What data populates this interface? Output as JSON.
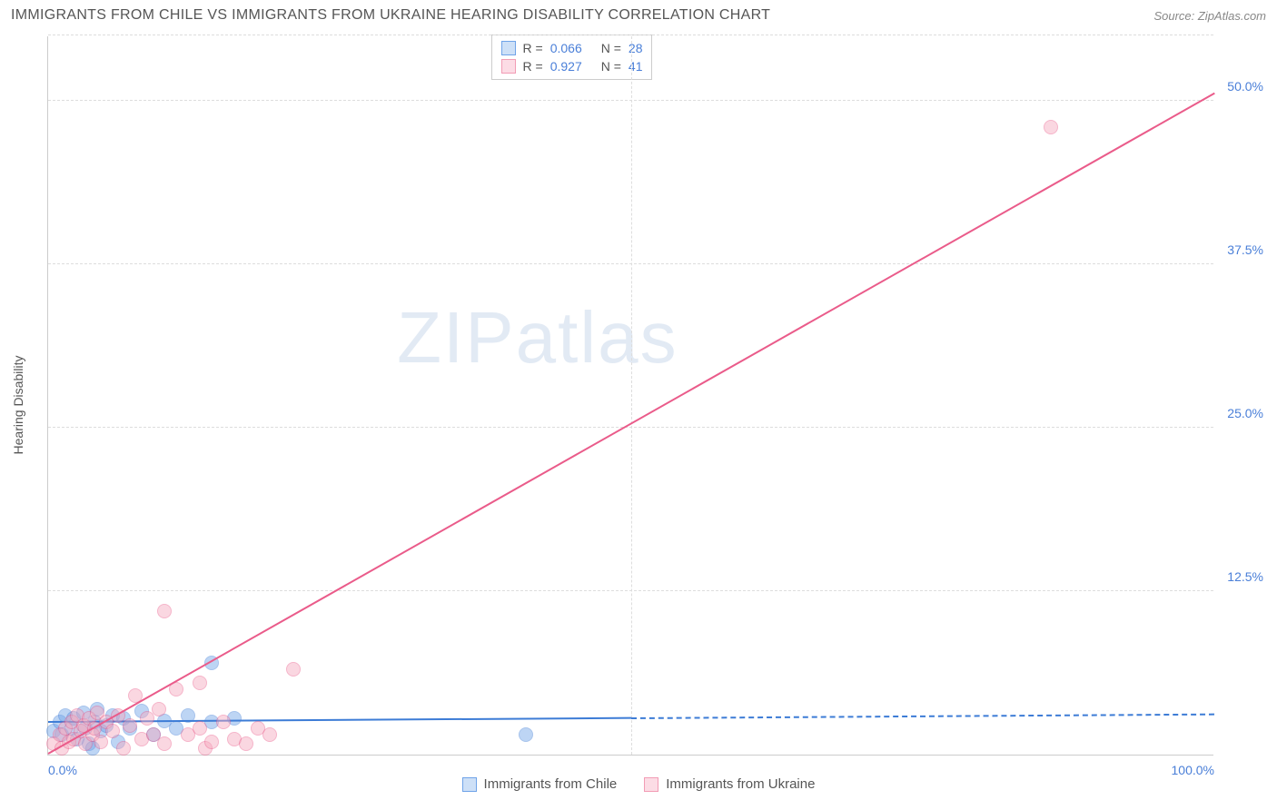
{
  "title": "IMMIGRANTS FROM CHILE VS IMMIGRANTS FROM UKRAINE HEARING DISABILITY CORRELATION CHART",
  "source": "Source: ZipAtlas.com",
  "watermark": {
    "zip": "ZIP",
    "atlas": "atlas"
  },
  "ylabel": "Hearing Disability",
  "chart": {
    "type": "scatter",
    "xlim": [
      0,
      100
    ],
    "ylim": [
      0,
      55
    ],
    "xtick_labels": [
      "0.0%",
      "100.0%"
    ],
    "xtick_positions": [
      0,
      100
    ],
    "ytick_labels": [
      "12.5%",
      "25.0%",
      "37.5%",
      "50.0%"
    ],
    "ytick_positions": [
      12.5,
      25.0,
      37.5,
      50.0
    ],
    "grid_h": [
      12.5,
      25.0,
      37.5,
      50.0,
      55
    ],
    "grid_v": [
      50
    ],
    "grid_color": "#dddddd",
    "background_color": "#ffffff",
    "axis_color": "#cccccc",
    "tick_label_color": "#4a7fd8",
    "axis_label_color": "#555555",
    "marker_radius": 8,
    "marker_opacity": 0.45,
    "series": [
      {
        "name": "Immigrants from Chile",
        "color_fill": "#6fa3e8",
        "color_stroke": "#3d7cd6",
        "points": [
          [
            0.5,
            1.8
          ],
          [
            1.0,
            2.5
          ],
          [
            1.2,
            1.5
          ],
          [
            1.5,
            3.0
          ],
          [
            2.0,
            2.0
          ],
          [
            2.2,
            2.8
          ],
          [
            2.5,
            1.2
          ],
          [
            3.0,
            3.2
          ],
          [
            3.2,
            2.0
          ],
          [
            3.5,
            0.8
          ],
          [
            4.0,
            2.5
          ],
          [
            4.2,
            3.5
          ],
          [
            4.5,
            1.8
          ],
          [
            5.0,
            2.2
          ],
          [
            5.5,
            3.0
          ],
          [
            6.0,
            1.0
          ],
          [
            6.5,
            2.8
          ],
          [
            7.0,
            2.0
          ],
          [
            8.0,
            3.3
          ],
          [
            9.0,
            1.5
          ],
          [
            10.0,
            2.6
          ],
          [
            11.0,
            2.0
          ],
          [
            12.0,
            3.0
          ],
          [
            14.0,
            2.5
          ],
          [
            14.0,
            7.0
          ],
          [
            16.0,
            2.8
          ],
          [
            41.0,
            1.5
          ],
          [
            3.8,
            0.5
          ]
        ],
        "trend": {
          "solid": {
            "x1": 0,
            "y1": 2.4,
            "x2": 50,
            "y2": 2.7
          },
          "dashed": {
            "x1": 50,
            "y1": 2.7,
            "x2": 100,
            "y2": 3.0
          },
          "width": 2
        }
      },
      {
        "name": "Immigrants from Ukraine",
        "color_fill": "#f6a8bd",
        "color_stroke": "#ea5b8a",
        "points": [
          [
            0.5,
            0.8
          ],
          [
            1.0,
            1.5
          ],
          [
            1.2,
            0.5
          ],
          [
            1.5,
            2.0
          ],
          [
            1.8,
            1.0
          ],
          [
            2.0,
            2.5
          ],
          [
            2.2,
            1.2
          ],
          [
            2.5,
            3.0
          ],
          [
            2.8,
            1.8
          ],
          [
            3.0,
            2.2
          ],
          [
            3.2,
            0.8
          ],
          [
            3.5,
            2.8
          ],
          [
            3.8,
            1.5
          ],
          [
            4.0,
            2.0
          ],
          [
            4.2,
            3.2
          ],
          [
            4.5,
            1.0
          ],
          [
            5.0,
            2.5
          ],
          [
            5.5,
            1.8
          ],
          [
            6.0,
            3.0
          ],
          [
            6.5,
            0.5
          ],
          [
            7.0,
            2.2
          ],
          [
            7.5,
            4.5
          ],
          [
            8.0,
            1.2
          ],
          [
            8.5,
            2.8
          ],
          [
            9.0,
            1.5
          ],
          [
            9.5,
            3.5
          ],
          [
            10.0,
            0.8
          ],
          [
            10.0,
            11.0
          ],
          [
            11.0,
            5.0
          ],
          [
            12.0,
            1.5
          ],
          [
            13.0,
            2.0
          ],
          [
            13.5,
            0.5
          ],
          [
            14.0,
            1.0
          ],
          [
            15.0,
            2.5
          ],
          [
            16.0,
            1.2
          ],
          [
            17.0,
            0.8
          ],
          [
            18.0,
            2.0
          ],
          [
            19.0,
            1.5
          ],
          [
            21.0,
            6.5
          ],
          [
            13.0,
            5.5
          ],
          [
            86.0,
            48.0
          ]
        ],
        "trend": {
          "solid": {
            "x1": 0,
            "y1": 0,
            "x2": 100,
            "y2": 50.5
          },
          "width": 2
        }
      }
    ],
    "legend_top": {
      "rows": [
        {
          "swatch_fill": "#cde0f7",
          "swatch_stroke": "#6fa3e8",
          "r_label": "R =",
          "r_val": "0.066",
          "n_label": "N =",
          "n_val": "28"
        },
        {
          "swatch_fill": "#fcdce5",
          "swatch_stroke": "#f29cb5",
          "r_label": "R =",
          "r_val": "0.927",
          "n_label": "N =",
          "n_val": "41"
        }
      ],
      "label_color": "#555555",
      "value_color": "#4a7fd8"
    },
    "legend_bottom": [
      {
        "swatch_fill": "#cde0f7",
        "swatch_stroke": "#6fa3e8",
        "label": "Immigrants from Chile"
      },
      {
        "swatch_fill": "#fcdce5",
        "swatch_stroke": "#f29cb5",
        "label": "Immigrants from Ukraine"
      }
    ]
  }
}
